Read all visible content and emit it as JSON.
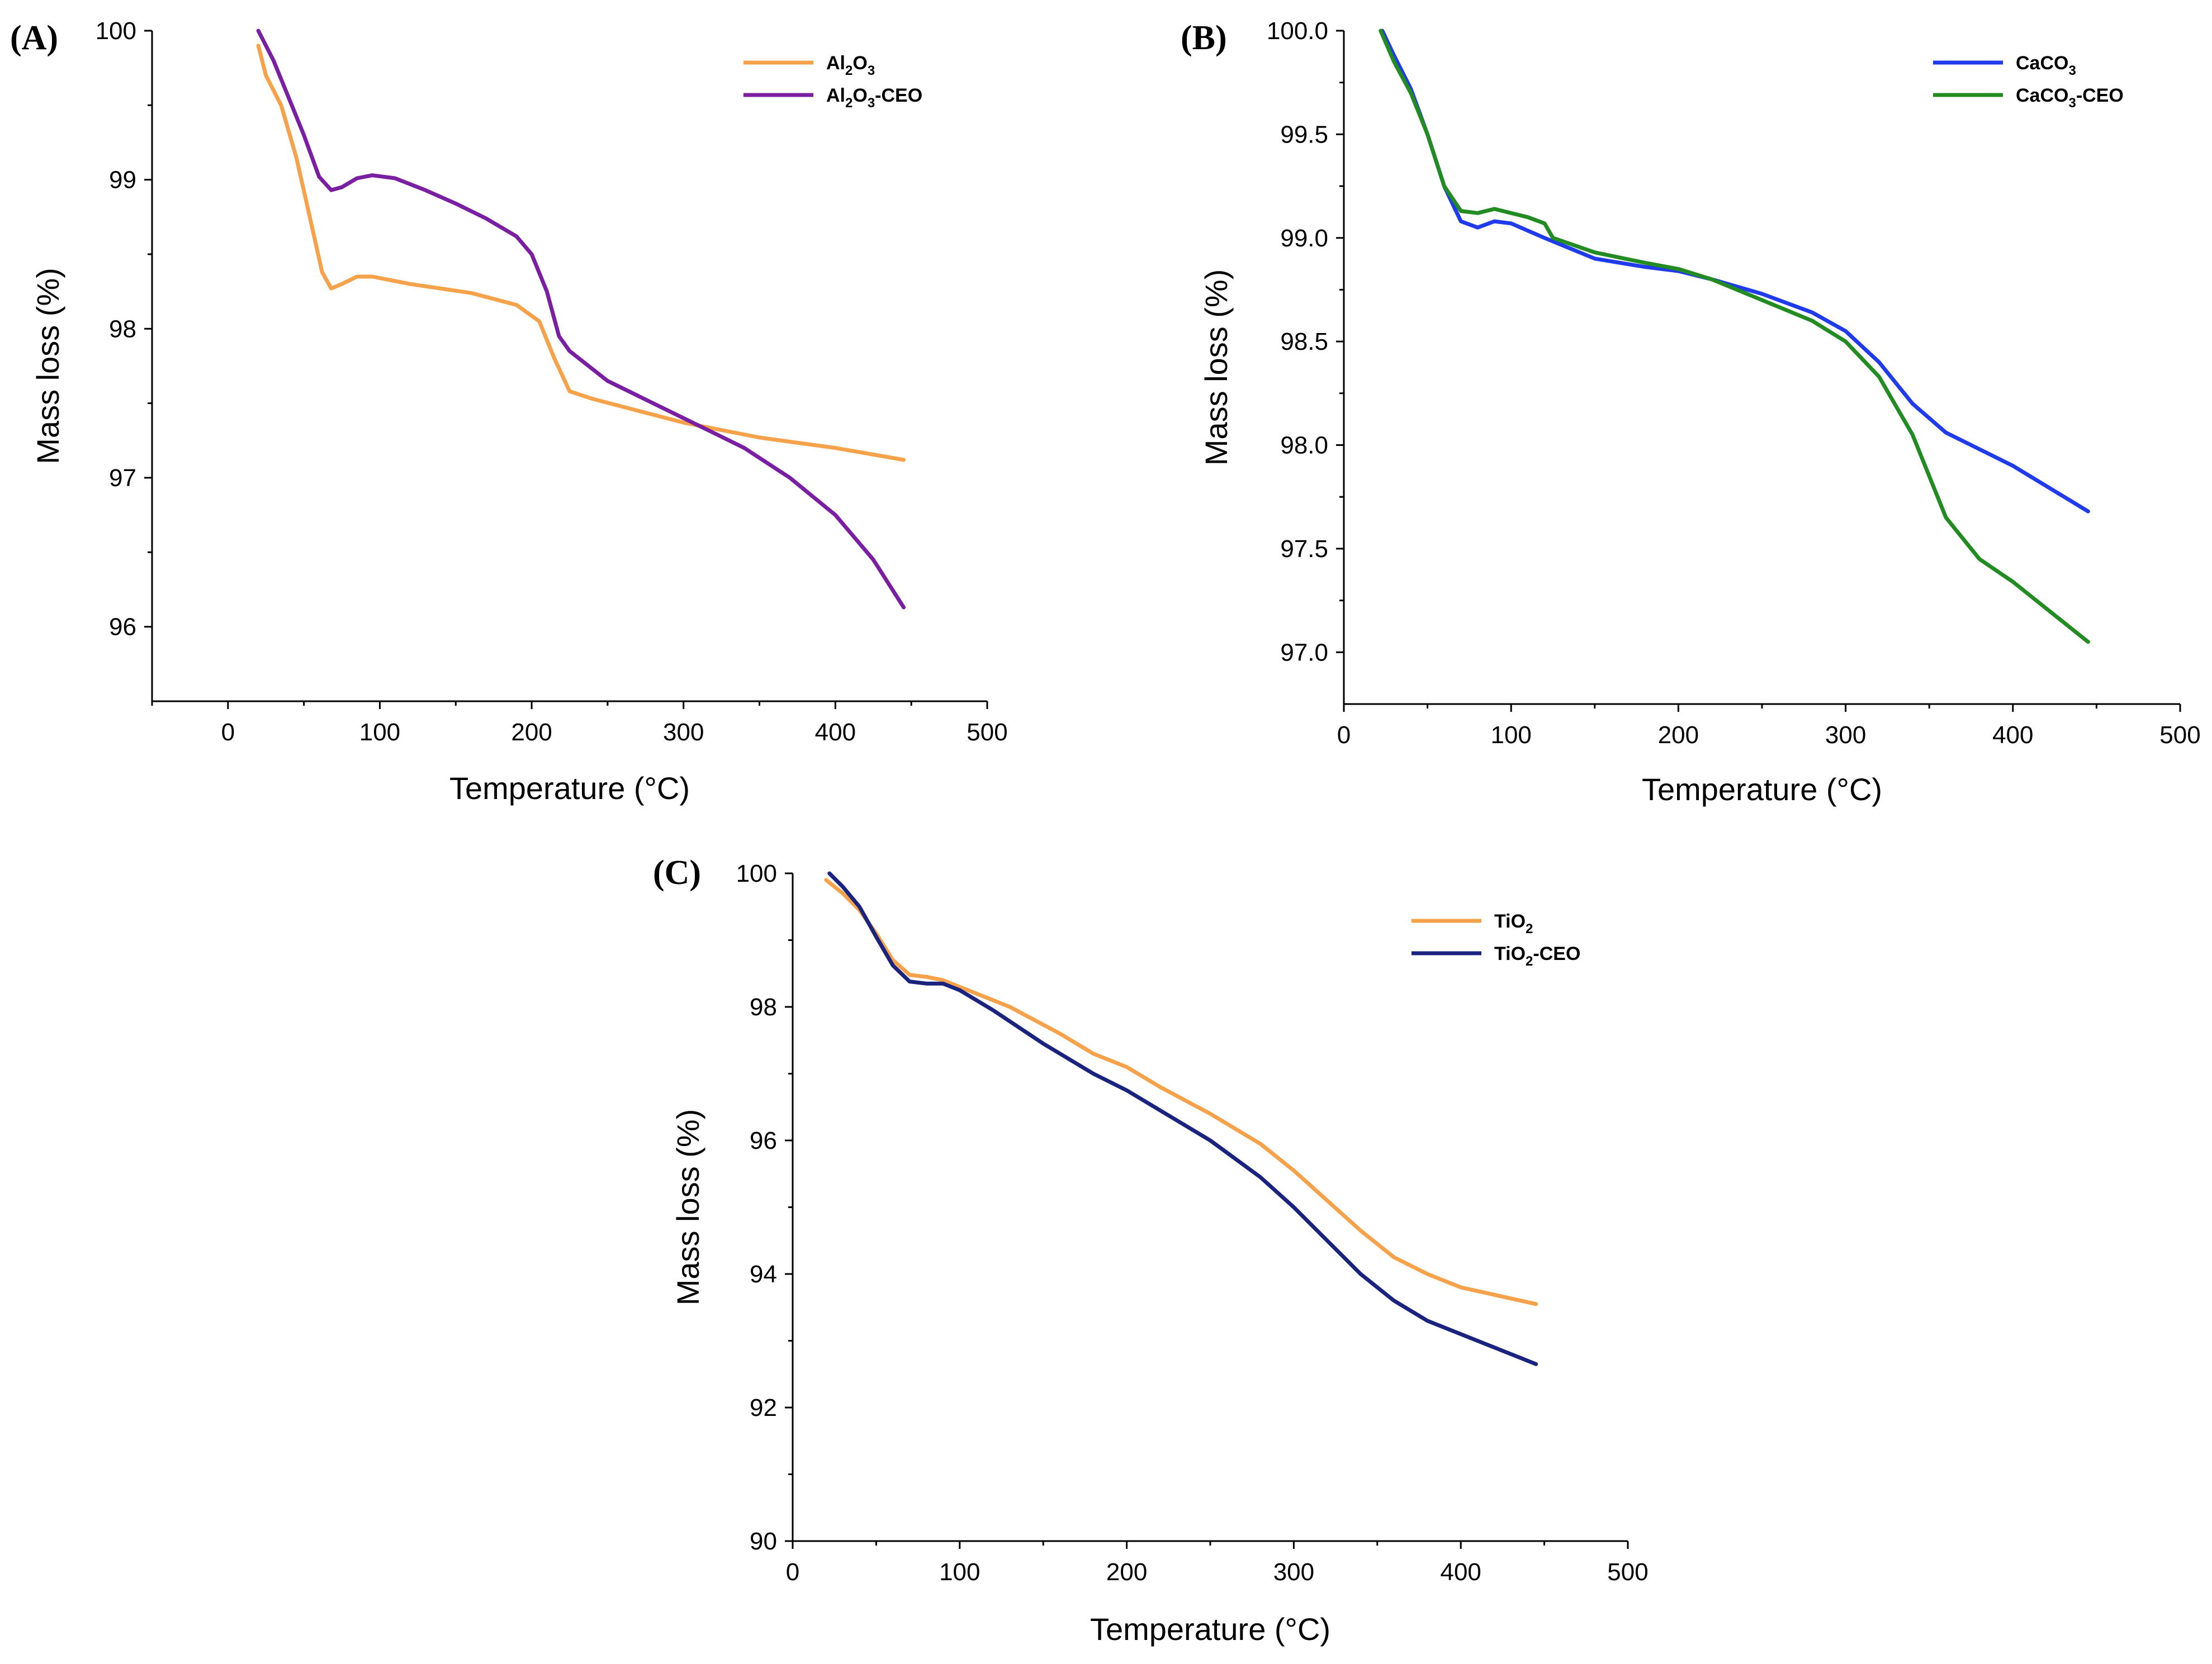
{
  "chart_data": [
    {
      "id": "A",
      "type": "line",
      "panel_label": "(A)",
      "xlabel": "Temperature (°C)",
      "ylabel": "Mass loss (%)",
      "xlim": [
        -50,
        500
      ],
      "ylim": [
        95.5,
        100
      ],
      "x_ticks": [
        0,
        100,
        200,
        300,
        400,
        500
      ],
      "y_ticks": [
        96,
        97,
        98,
        99,
        100
      ],
      "legend_position": "top-right",
      "series": [
        {
          "name": "Al2O3",
          "legend_main": "Al",
          "legend_sub1": "2",
          "legend_mid": "O",
          "legend_sub2": "3",
          "legend_tail": "",
          "color": "#F5A24B",
          "points": [
            [
              20,
              99.9
            ],
            [
              25,
              99.7
            ],
            [
              35,
              99.5
            ],
            [
              45,
              99.15
            ],
            [
              55,
              98.7
            ],
            [
              62,
              98.38
            ],
            [
              68,
              98.27
            ],
            [
              75,
              98.3
            ],
            [
              85,
              98.35
            ],
            [
              95,
              98.35
            ],
            [
              120,
              98.3
            ],
            [
              160,
              98.24
            ],
            [
              190,
              98.16
            ],
            [
              205,
              98.05
            ],
            [
              215,
              97.8
            ],
            [
              225,
              97.58
            ],
            [
              240,
              97.53
            ],
            [
              300,
              97.37
            ],
            [
              350,
              97.27
            ],
            [
              400,
              97.2
            ],
            [
              445,
              97.12
            ]
          ]
        },
        {
          "name": "Al2O3-CEO",
          "legend_main": "Al",
          "legend_sub1": "2",
          "legend_mid": "O",
          "legend_sub2": "3",
          "legend_tail": "-CEO",
          "color": "#7B1FA2",
          "points": [
            [
              20,
              100
            ],
            [
              30,
              99.8
            ],
            [
              40,
              99.55
            ],
            [
              50,
              99.3
            ],
            [
              60,
              99.02
            ],
            [
              68,
              98.93
            ],
            [
              75,
              98.95
            ],
            [
              85,
              99.01
            ],
            [
              95,
              99.03
            ],
            [
              110,
              99.01
            ],
            [
              130,
              98.93
            ],
            [
              150,
              98.84
            ],
            [
              170,
              98.74
            ],
            [
              190,
              98.62
            ],
            [
              200,
              98.5
            ],
            [
              210,
              98.25
            ],
            [
              218,
              97.95
            ],
            [
              225,
              97.85
            ],
            [
              250,
              97.65
            ],
            [
              300,
              97.4
            ],
            [
              340,
              97.2
            ],
            [
              370,
              97.0
            ],
            [
              400,
              96.75
            ],
            [
              425,
              96.45
            ],
            [
              445,
              96.13
            ]
          ]
        }
      ]
    },
    {
      "id": "B",
      "type": "line",
      "panel_label": "(B)",
      "xlabel": "Temperature (°C)",
      "ylabel": "Mass loss (%)",
      "xlim": [
        0,
        500
      ],
      "ylim": [
        96.75,
        100
      ],
      "x_ticks": [
        0,
        100,
        200,
        300,
        400,
        500
      ],
      "y_ticks": [
        97.0,
        97.5,
        98.0,
        98.5,
        99.0,
        99.5,
        100.0
      ],
      "y_tick_labels": [
        "97.0",
        "97.5",
        "98.0",
        "98.5",
        "99.0",
        "99.5",
        "100.0"
      ],
      "legend_position": "top-right",
      "series": [
        {
          "name": "CaCO3",
          "legend_main": "CaCO",
          "legend_sub1": "3",
          "legend_mid": "",
          "legend_sub2": "",
          "legend_tail": "",
          "color": "#1F3BEA",
          "points": [
            [
              23,
              100
            ],
            [
              30,
              99.88
            ],
            [
              40,
              99.72
            ],
            [
              50,
              99.5
            ],
            [
              60,
              99.25
            ],
            [
              70,
              99.08
            ],
            [
              80,
              99.05
            ],
            [
              90,
              99.08
            ],
            [
              100,
              99.07
            ],
            [
              120,
              99.0
            ],
            [
              150,
              98.9
            ],
            [
              180,
              98.86
            ],
            [
              200,
              98.84
            ],
            [
              220,
              98.8
            ],
            [
              250,
              98.73
            ],
            [
              280,
              98.64
            ],
            [
              300,
              98.55
            ],
            [
              320,
              98.4
            ],
            [
              340,
              98.2
            ],
            [
              360,
              98.06
            ],
            [
              400,
              97.9
            ],
            [
              445,
              97.68
            ]
          ]
        },
        {
          "name": "CaCO3-CEO",
          "legend_main": "CaCO",
          "legend_sub1": "3",
          "legend_mid": "",
          "legend_sub2": "",
          "legend_tail": "-CEO",
          "color": "#228B22",
          "points": [
            [
              22,
              100
            ],
            [
              30,
              99.85
            ],
            [
              40,
              99.7
            ],
            [
              50,
              99.5
            ],
            [
              60,
              99.25
            ],
            [
              70,
              99.13
            ],
            [
              80,
              99.12
            ],
            [
              90,
              99.14
            ],
            [
              110,
              99.1
            ],
            [
              120,
              99.07
            ],
            [
              125,
              99.0
            ],
            [
              150,
              98.93
            ],
            [
              180,
              98.88
            ],
            [
              200,
              98.85
            ],
            [
              220,
              98.8
            ],
            [
              250,
              98.7
            ],
            [
              280,
              98.6
            ],
            [
              300,
              98.5
            ],
            [
              320,
              98.33
            ],
            [
              340,
              98.05
            ],
            [
              360,
              97.65
            ],
            [
              380,
              97.45
            ],
            [
              400,
              97.34
            ],
            [
              445,
              97.05
            ]
          ]
        }
      ]
    },
    {
      "id": "C",
      "type": "line",
      "panel_label": "(C)",
      "xlabel": "Temperature (°C)",
      "ylabel": "Mass loss (%)",
      "xlim": [
        0,
        500
      ],
      "ylim": [
        90,
        100
      ],
      "x_ticks": [
        0,
        100,
        200,
        300,
        400,
        500
      ],
      "y_ticks": [
        90,
        92,
        94,
        96,
        98,
        100
      ],
      "legend_position": "top-right",
      "series": [
        {
          "name": "TiO2",
          "legend_main": "TiO",
          "legend_sub1": "2",
          "legend_mid": "",
          "legend_sub2": "",
          "legend_tail": "",
          "color": "#F5A24B",
          "points": [
            [
              20,
              99.9
            ],
            [
              30,
              99.7
            ],
            [
              40,
              99.45
            ],
            [
              50,
              99.1
            ],
            [
              60,
              98.7
            ],
            [
              70,
              98.48
            ],
            [
              80,
              98.45
            ],
            [
              90,
              98.4
            ],
            [
              100,
              98.3
            ],
            [
              130,
              98.0
            ],
            [
              160,
              97.6
            ],
            [
              180,
              97.3
            ],
            [
              200,
              97.1
            ],
            [
              220,
              96.8
            ],
            [
              250,
              96.4
            ],
            [
              280,
              95.95
            ],
            [
              300,
              95.55
            ],
            [
              320,
              95.1
            ],
            [
              340,
              94.65
            ],
            [
              360,
              94.25
            ],
            [
              380,
              94.0
            ],
            [
              400,
              93.8
            ],
            [
              445,
              93.55
            ]
          ]
        },
        {
          "name": "TiO2-CEO",
          "legend_main": "TiO",
          "legend_sub1": "2",
          "legend_mid": "",
          "legend_sub2": "",
          "legend_tail": "-CEO",
          "color": "#1A237E",
          "points": [
            [
              22,
              100
            ],
            [
              30,
              99.8
            ],
            [
              40,
              99.5
            ],
            [
              50,
              99.05
            ],
            [
              60,
              98.62
            ],
            [
              70,
              98.38
            ],
            [
              80,
              98.35
            ],
            [
              90,
              98.35
            ],
            [
              100,
              98.25
            ],
            [
              120,
              97.95
            ],
            [
              150,
              97.45
            ],
            [
              180,
              97.0
            ],
            [
              200,
              96.75
            ],
            [
              220,
              96.45
            ],
            [
              250,
              96.0
            ],
            [
              280,
              95.45
            ],
            [
              300,
              95.0
            ],
            [
              320,
              94.5
            ],
            [
              340,
              94.0
            ],
            [
              360,
              93.6
            ],
            [
              380,
              93.3
            ],
            [
              400,
              93.1
            ],
            [
              445,
              92.65
            ]
          ]
        }
      ]
    }
  ]
}
